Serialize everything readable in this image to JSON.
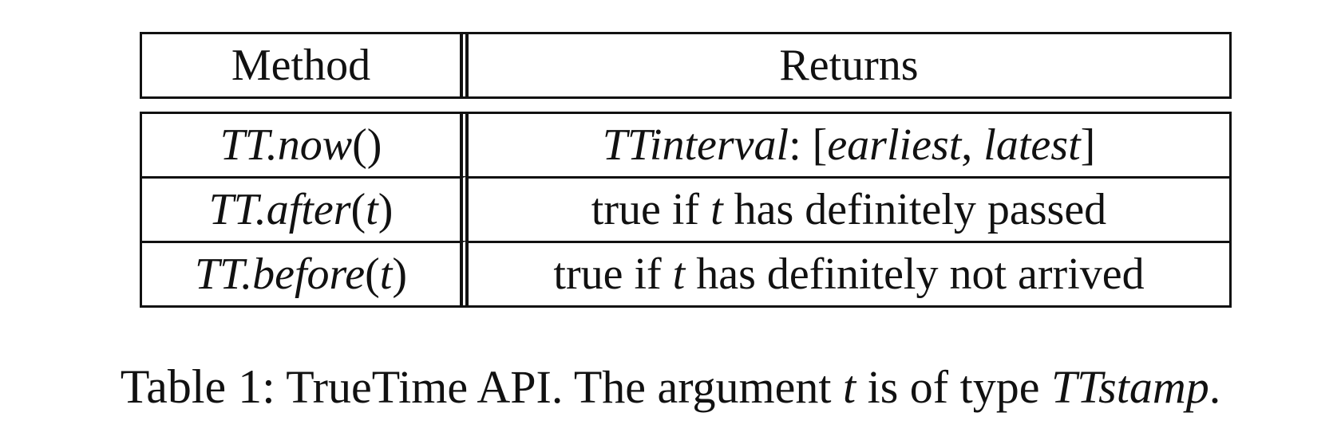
{
  "table": {
    "headers": [
      "Method",
      "Returns"
    ],
    "rows": [
      {
        "method": {
          "name": "TT.now",
          "args": "()"
        },
        "returns": {
          "type": "TTinterval",
          "sep": ": [",
          "a": "earliest",
          "comma": ", ",
          "b": "latest",
          "close": "]"
        }
      },
      {
        "method": {
          "name": "TT.after",
          "args_open": "(",
          "arg": "t",
          "args_close": ")"
        },
        "returns": {
          "pre": "true if ",
          "var": "t",
          "post": " has definitely passed"
        }
      },
      {
        "method": {
          "name": "TT.before",
          "args_open": "(",
          "arg": "t",
          "args_close": ")"
        },
        "returns": {
          "pre": "true if ",
          "var": "t",
          "post": " has definitely not arrived"
        }
      }
    ]
  },
  "caption": {
    "label": "Table 1:",
    "text_a": " TrueTime API. The argument ",
    "var": "t",
    "text_b": " is of type ",
    "type": "TTstamp",
    "end": "."
  }
}
